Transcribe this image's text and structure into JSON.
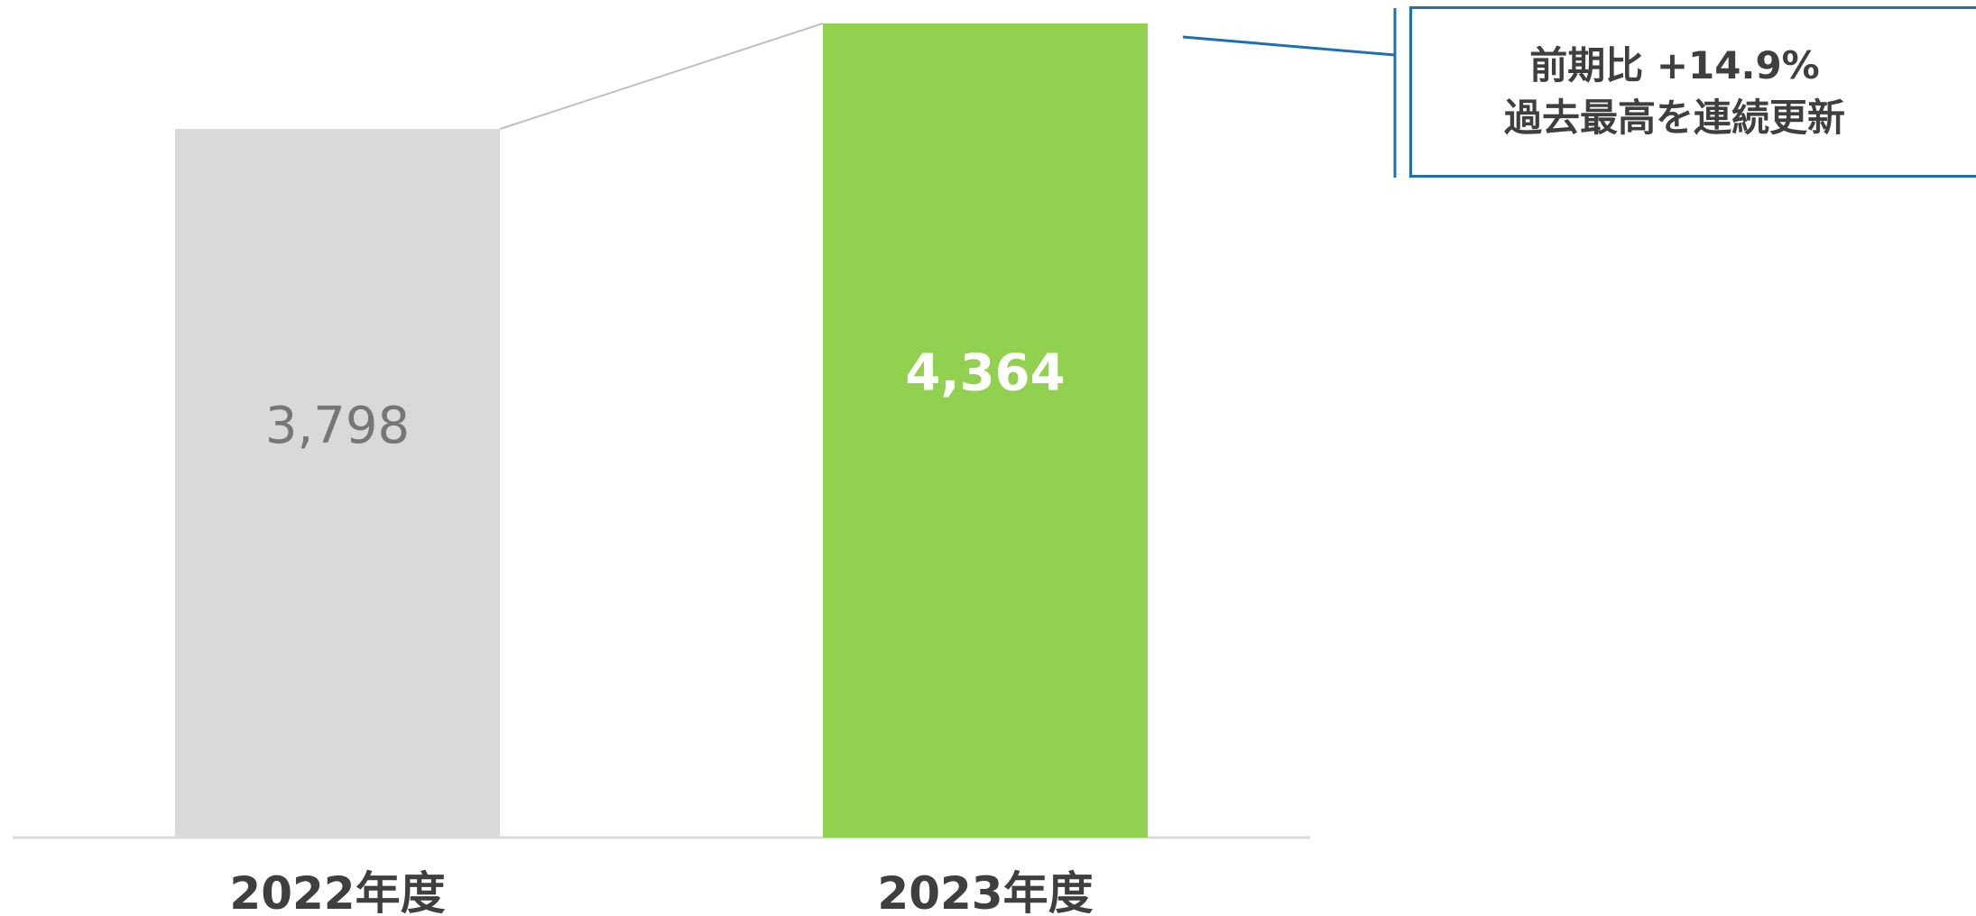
{
  "chart_data": {
    "type": "bar",
    "categories": [
      "2022年度",
      "2023年度"
    ],
    "values": [
      3798,
      4364
    ],
    "value_labels": [
      "3,798",
      "4,364"
    ],
    "bar_colors": [
      "#d9d9d9",
      "#92d050"
    ],
    "value_label_colors": [
      "#767676",
      "#ffffff"
    ],
    "ylim": [
      0,
      4364
    ],
    "grid": false,
    "legend": "none",
    "annotation": {
      "line1": "前期比 +14.9%",
      "line2": "過去最高を連続更新",
      "border_color": "#1f6fb5"
    },
    "connector_color": "#bfbfbf",
    "axis_color": "#d9d9d9"
  }
}
